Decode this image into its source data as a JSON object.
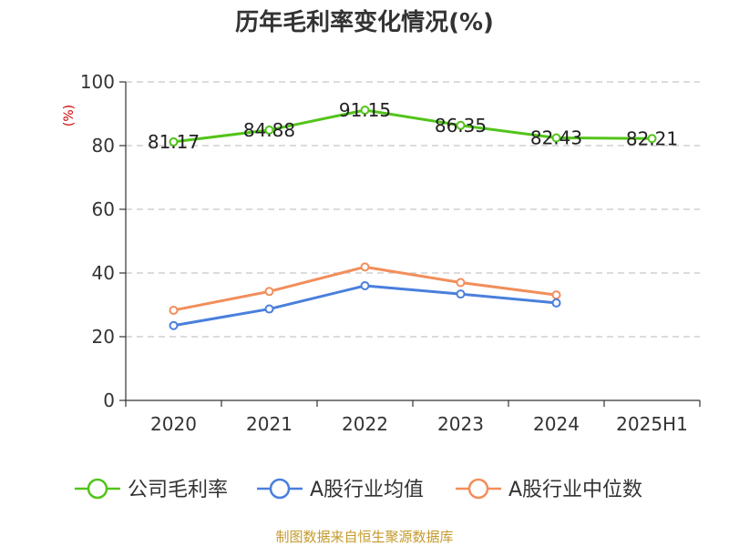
{
  "chart_data": {
    "type": "line",
    "title": "历年毛利率变化情况(%)",
    "ylabel": "(%)",
    "xlabel": "",
    "categories": [
      "2020",
      "2021",
      "2022",
      "2023",
      "2024",
      "2025H1"
    ],
    "ylim": [
      0,
      100
    ],
    "yticks": [
      0,
      20,
      40,
      60,
      80,
      100
    ],
    "grid": true,
    "legend_position": "bottom",
    "series": [
      {
        "name": "公司毛利率",
        "color": "#52c41a",
        "values": [
          81.17,
          84.88,
          91.15,
          86.35,
          82.43,
          82.21
        ],
        "labels": [
          "81.17",
          "84.88",
          "91.15",
          "86.35",
          "82.43",
          "82.21"
        ]
      },
      {
        "name": "A股行业均值",
        "color": "#4a7fdc",
        "values": [
          23.5,
          28.7,
          36.0,
          33.4,
          30.6,
          null
        ]
      },
      {
        "name": "A股行业中位数",
        "color": "#f28e5b",
        "values": [
          28.3,
          34.2,
          41.9,
          37.0,
          33.1,
          null
        ]
      }
    ],
    "source": "制图数据来自恒生聚源数据库"
  }
}
